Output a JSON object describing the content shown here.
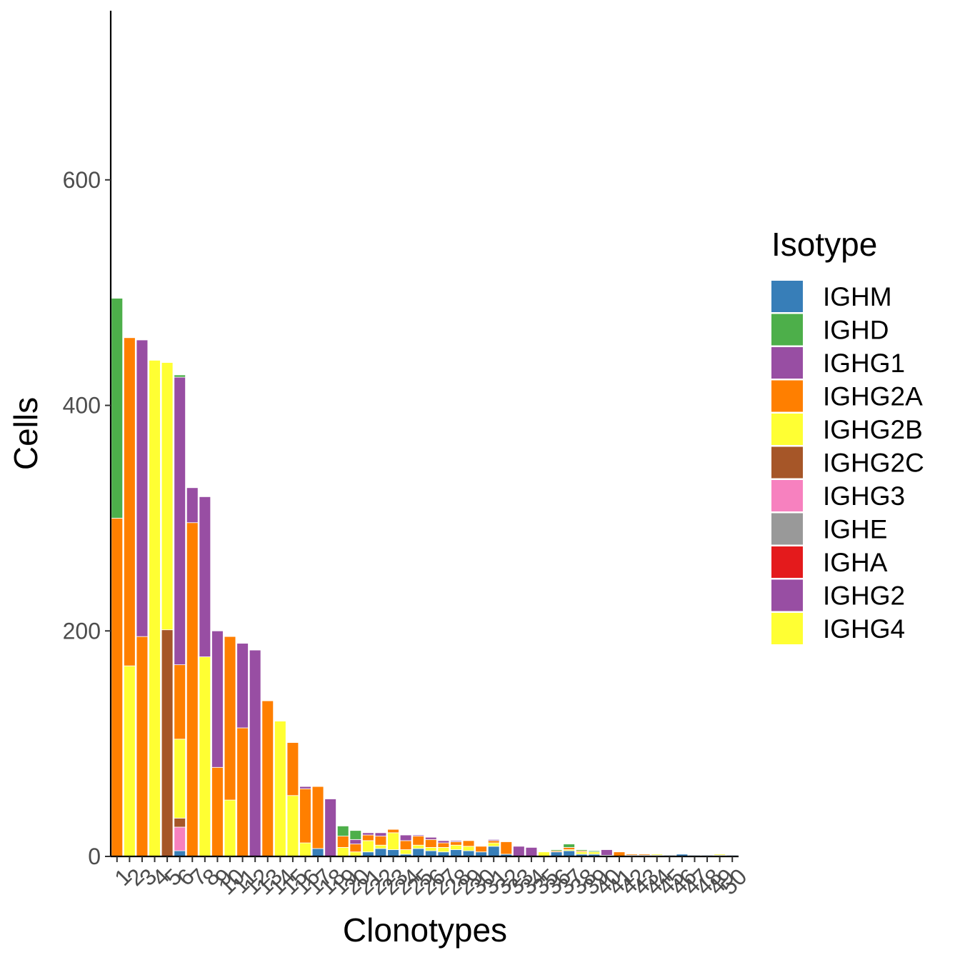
{
  "chart_data": {
    "type": "bar",
    "stacked": true,
    "xlabel": "Clonotypes",
    "ylabel": "Cells",
    "ylim": [
      0,
      750
    ],
    "yticks": [
      0,
      200,
      400,
      600
    ],
    "grid": false,
    "legend_position": "right",
    "legend_title": "Isotype",
    "isotypes": [
      {
        "name": "IGHM",
        "color": "#377EB8"
      },
      {
        "name": "IGHD",
        "color": "#4DAF4A"
      },
      {
        "name": "IGHG1",
        "color": "#984EA3"
      },
      {
        "name": "IGHG2A",
        "color": "#FF7F00"
      },
      {
        "name": "IGHG2B",
        "color": "#FFFF33"
      },
      {
        "name": "IGHG2C",
        "color": "#A65628"
      },
      {
        "name": "IGHG3",
        "color": "#F781BF"
      },
      {
        "name": "IGHE",
        "color": "#999999"
      },
      {
        "name": "IGHA",
        "color": "#E41A1C"
      },
      {
        "name": "IGHG2",
        "color": "#984EA3"
      },
      {
        "name": "IGHG4",
        "color": "#FFFF33"
      }
    ],
    "stack_order": [
      "IGHM",
      "IGHG3",
      "IGHG2C",
      "IGHG2B",
      "IGHG2A",
      "IGHG1",
      "IGHD"
    ],
    "categories": [
      "1",
      "2",
      "3",
      "4",
      "5",
      "6",
      "7",
      "8",
      "9",
      "10",
      "11",
      "12",
      "13",
      "14",
      "15",
      "16",
      "17",
      "18",
      "19",
      "20",
      "21",
      "22",
      "23",
      "24",
      "25",
      "26",
      "27",
      "28",
      "29",
      "30",
      "31",
      "32",
      "33",
      "34",
      "35",
      "36",
      "37",
      "38",
      "39",
      "40",
      "41",
      "42",
      "43",
      "44",
      "45",
      "46",
      "47",
      "48",
      "49",
      "50"
    ],
    "series": [
      {
        "name": "IGHM",
        "values": [
          0,
          0,
          0,
          0,
          0,
          5,
          0,
          0,
          0,
          0,
          0,
          0,
          0,
          0,
          0,
          0,
          7,
          0,
          0,
          0,
          4,
          7,
          6,
          2,
          7,
          5,
          4,
          6,
          5,
          4,
          9,
          2,
          0,
          0,
          0,
          4,
          5,
          2,
          2,
          1,
          0,
          1,
          1,
          1,
          1,
          2,
          1,
          1,
          1,
          1
        ]
      },
      {
        "name": "IGHG3",
        "values": [
          0,
          0,
          0,
          0,
          0,
          21,
          0,
          0,
          0,
          0,
          0,
          0,
          0,
          0,
          0,
          0,
          0,
          0,
          0,
          0,
          0,
          0,
          0,
          0,
          0,
          0,
          0,
          0,
          0,
          0,
          0,
          0,
          0,
          0,
          0,
          0,
          0,
          0,
          0,
          0,
          0,
          0,
          0,
          0,
          0,
          0,
          0,
          0,
          0,
          0
        ]
      },
      {
        "name": "IGHG2C",
        "values": [
          0,
          0,
          0,
          0,
          201,
          8,
          0,
          0,
          0,
          0,
          0,
          0,
          0,
          0,
          0,
          0,
          0,
          0,
          0,
          0,
          0,
          0,
          0,
          0,
          0,
          0,
          0,
          0,
          0,
          0,
          0,
          0,
          0,
          0,
          0,
          0,
          0,
          0,
          0,
          0,
          0,
          0,
          0,
          0,
          0,
          0,
          0,
          0,
          0,
          0
        ]
      },
      {
        "name": "IGHG2B",
        "values": [
          0,
          169,
          0,
          440,
          237,
          70,
          0,
          177,
          0,
          50,
          0,
          0,
          0,
          120,
          54,
          12,
          0,
          0,
          8,
          4,
          10,
          3,
          15,
          4,
          3,
          3,
          4,
          4,
          4,
          0,
          3,
          0,
          0,
          0,
          4,
          0,
          1,
          2,
          2,
          0,
          0,
          0,
          0,
          1,
          0,
          0,
          0,
          0,
          1,
          0
        ]
      },
      {
        "name": "IGHG2A",
        "values": [
          300,
          291,
          195,
          0,
          0,
          66,
          296,
          0,
          79,
          145,
          114,
          0,
          138,
          0,
          47,
          48,
          55,
          0,
          10,
          7,
          5,
          8,
          3,
          8,
          8,
          7,
          4,
          3,
          5,
          5,
          2,
          11,
          0,
          0,
          0,
          1,
          2,
          1,
          0,
          0,
          4,
          1,
          1,
          0,
          0,
          0,
          0,
          0,
          0,
          0
        ]
      },
      {
        "name": "IGHG1",
        "values": [
          0,
          0,
          263,
          0,
          0,
          255,
          31,
          142,
          121,
          0,
          75,
          183,
          0,
          0,
          0,
          2,
          0,
          51,
          0,
          4,
          2,
          3,
          0,
          5,
          1,
          2,
          2,
          1,
          0,
          0,
          1,
          0,
          9,
          8,
          0,
          0,
          0,
          0,
          0,
          5,
          0,
          0,
          0,
          0,
          0,
          0,
          0,
          0,
          0,
          0
        ]
      },
      {
        "name": "IGHD",
        "values": [
          195,
          0,
          0,
          0,
          0,
          2,
          0,
          0,
          0,
          0,
          0,
          0,
          0,
          0,
          0,
          0,
          0,
          0,
          9,
          8,
          0,
          0,
          0,
          0,
          0,
          0,
          0,
          0,
          0,
          0,
          0,
          0,
          0,
          0,
          0,
          1,
          3,
          1,
          1,
          0,
          0,
          0,
          0,
          0,
          0,
          0,
          0,
          0,
          0,
          0
        ]
      }
    ]
  }
}
